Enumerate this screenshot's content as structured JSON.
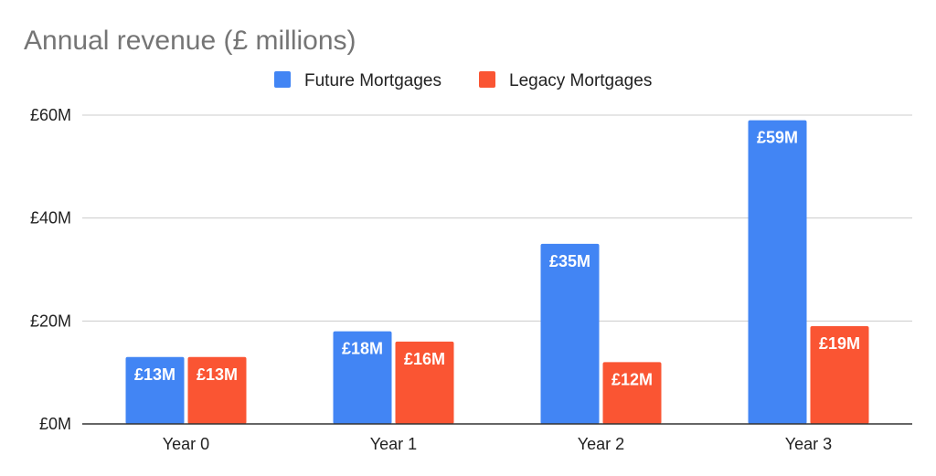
{
  "chart_data": {
    "type": "bar",
    "title": "Annual revenue (£ millions)",
    "categories": [
      "Year 0",
      "Year 1",
      "Year 2",
      "Year 3"
    ],
    "series": [
      {
        "name": "Future Mortgages",
        "color": "#4285f4",
        "values": [
          13,
          18,
          35,
          59
        ],
        "labels": [
          "£13M",
          "£18M",
          "£35M",
          "£59M"
        ]
      },
      {
        "name": "Legacy Mortgages",
        "color": "#fa5533",
        "values": [
          13,
          16,
          12,
          19
        ],
        "labels": [
          "£13M",
          "£16M",
          "£12M",
          "£19M"
        ]
      }
    ],
    "ylim": [
      0,
      60
    ],
    "yticks": [
      0,
      20,
      40,
      60
    ],
    "ytick_labels": [
      "£0M",
      "£20M",
      "£40M",
      "£60M"
    ],
    "legend_position": "top",
    "grid": true
  }
}
